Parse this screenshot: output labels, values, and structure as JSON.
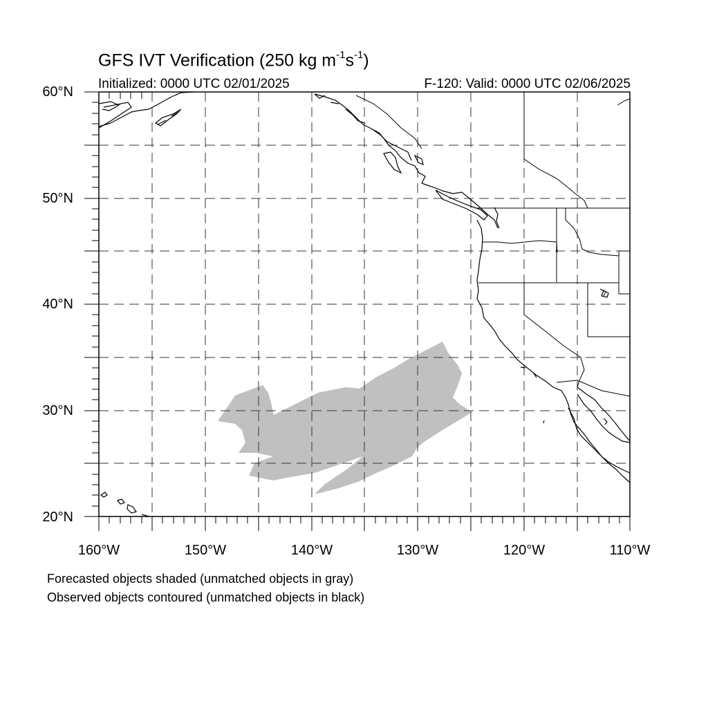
{
  "title": {
    "main": "GFS IVT Verification (250 kg m",
    "sup1": "-1",
    "mid": "s",
    "sup2": "-1",
    "end": ")"
  },
  "initialized": "Initialized: 0000 UTC 02/01/2025",
  "valid": "F-120: Valid: 0000 UTC 02/06/2025",
  "lat_labels": [
    "60°N",
    "50°N",
    "40°N",
    "30°N",
    "20°N"
  ],
  "lon_labels": [
    "160°W",
    "150°W",
    "140°W",
    "130°W",
    "120°W",
    "110°W"
  ],
  "notes": {
    "line1": "Forecasted objects shaded (unmatched objects in gray)",
    "line2": "Observed objects contoured (unmatched objects in black)"
  },
  "map": {
    "extent": {
      "lon_min": -160,
      "lon_max": -110,
      "lat_min": 20,
      "lat_max": 60
    },
    "grid_spacing_deg": 5,
    "forecast_object_color": "#c0c0c0",
    "coast_color": "#000000"
  }
}
